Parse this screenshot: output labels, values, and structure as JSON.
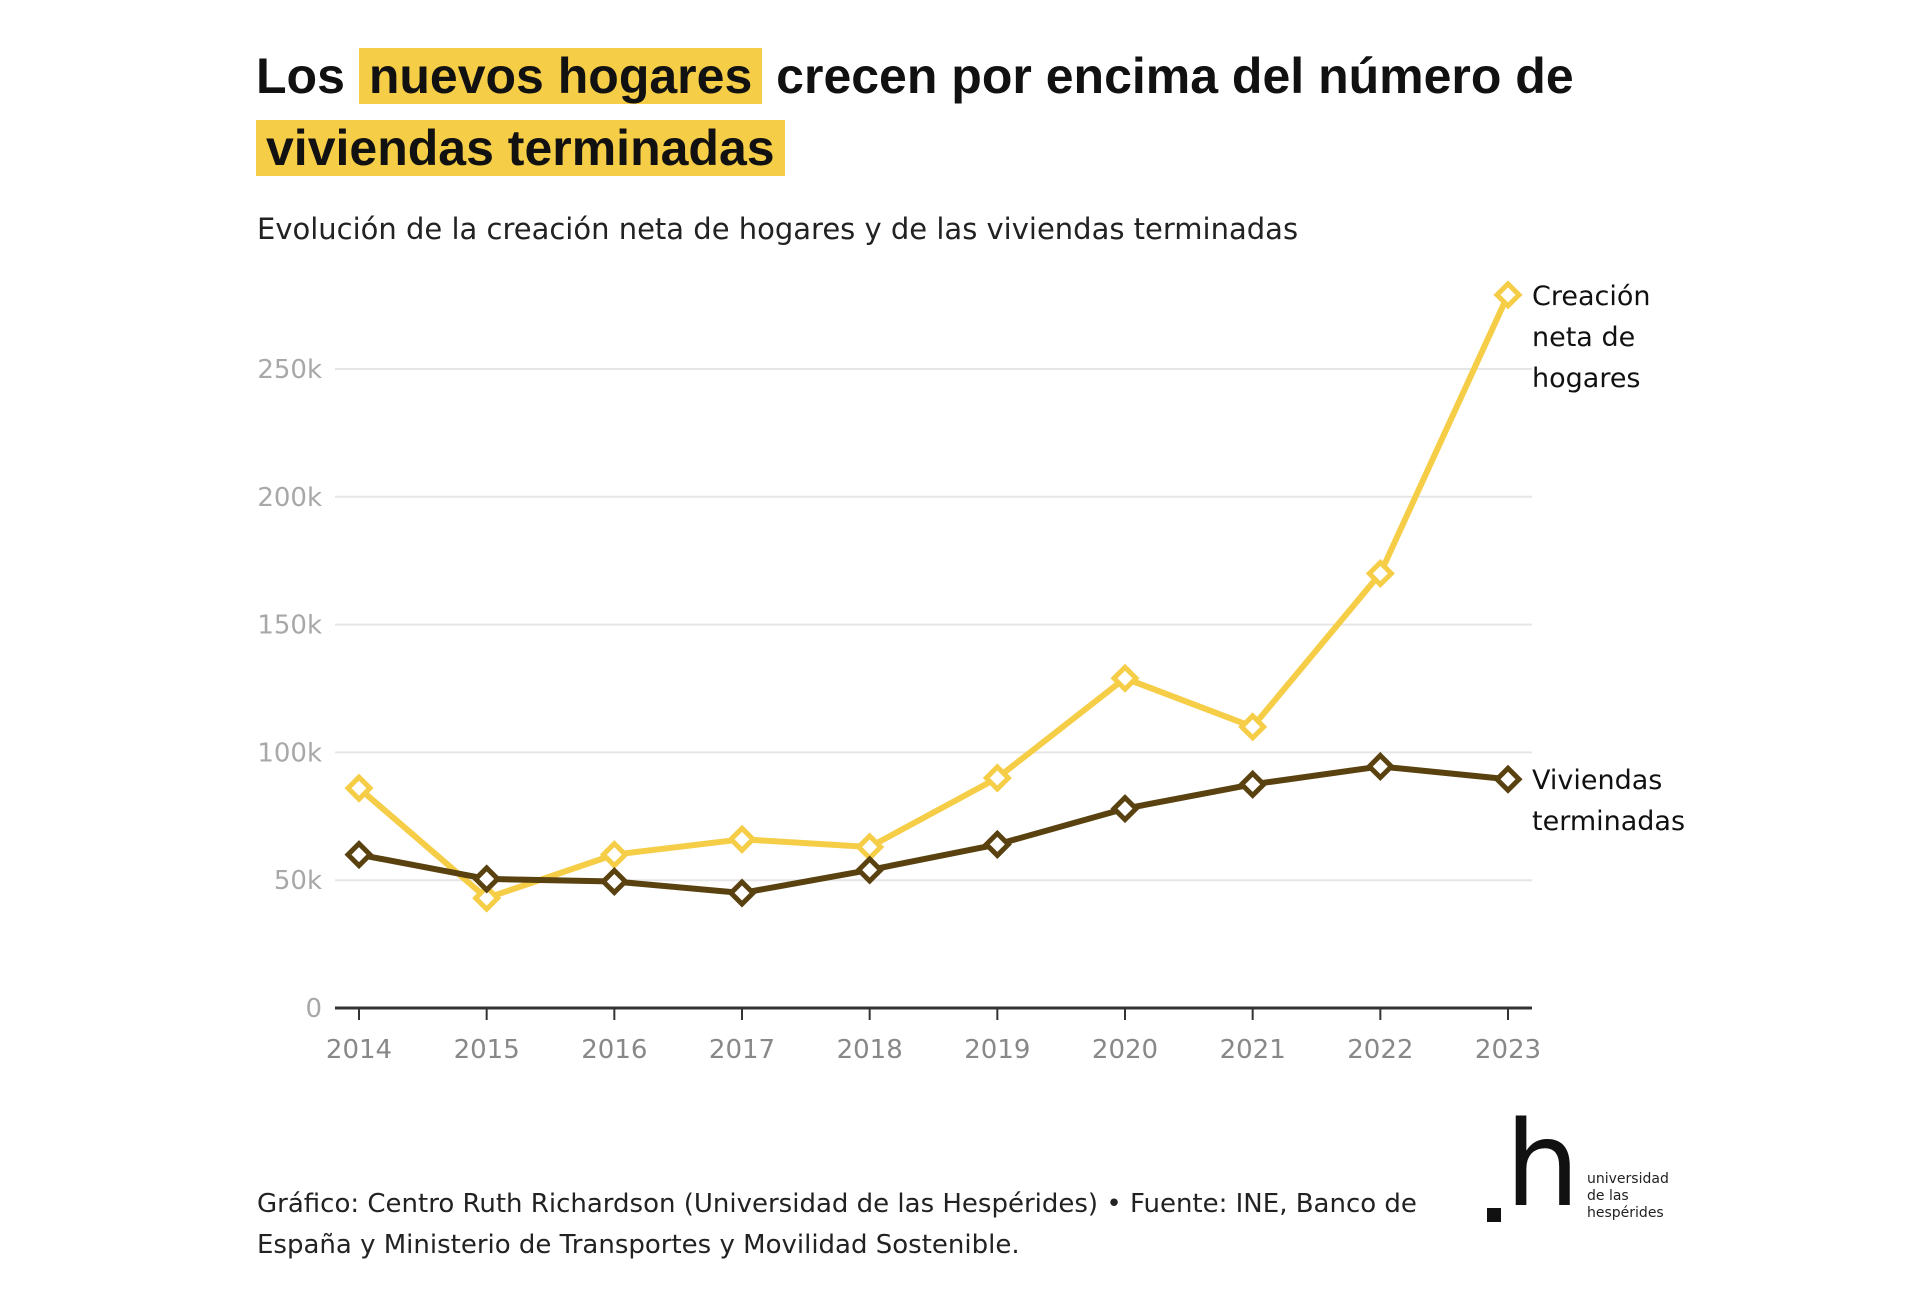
{
  "title": {
    "part1": "Los",
    "highlight1": "nuevos hogares",
    "part2": "crecen por encima del número de",
    "highlight2": "viviendas terminadas"
  },
  "subtitle": "Evolución de la creación neta de hogares y de las viviendas terminadas",
  "footer": "Gráfico: Centro Ruth Richardson (Universidad de las Hespérides) • Fuente: INE, Banco de España y Ministerio de Transportes y Movilidad Sostenible.",
  "logo": {
    "mark": ".h",
    "lines": [
      "universidad",
      "de las",
      "hespérides"
    ]
  },
  "chart_data": {
    "type": "line",
    "title": "Los nuevos hogares crecen por encima del número de viviendas terminadas",
    "x": [
      2014,
      2015,
      2016,
      2017,
      2018,
      2019,
      2020,
      2021,
      2022,
      2023
    ],
    "xtick_labels": [
      "2014",
      "2015",
      "2016",
      "2017",
      "2018",
      "2019",
      "2020",
      "2021",
      "2022",
      "2023"
    ],
    "ylim": [
      0,
      280000
    ],
    "yticks": [
      0,
      50000,
      100000,
      150000,
      200000,
      250000
    ],
    "ytick_labels": [
      "0",
      "50k",
      "100k",
      "150k",
      "200k",
      "250k"
    ],
    "grid": true,
    "legend": "direct-labels-right",
    "series": [
      {
        "name": "Creación neta de hogares",
        "label_lines": [
          "Creación",
          "neta de",
          "hogares"
        ],
        "color": "#f5cd46",
        "values": [
          86000,
          43000,
          60000,
          66000,
          63000,
          90000,
          129000,
          110000,
          170000,
          279000
        ]
      },
      {
        "name": "Viviendas terminadas",
        "label_lines": [
          "Viviendas",
          "terminadas"
        ],
        "color": "#5a4210",
        "values": [
          60000,
          50500,
          49500,
          45000,
          54000,
          64000,
          78000,
          87500,
          94500,
          89500
        ]
      }
    ]
  }
}
